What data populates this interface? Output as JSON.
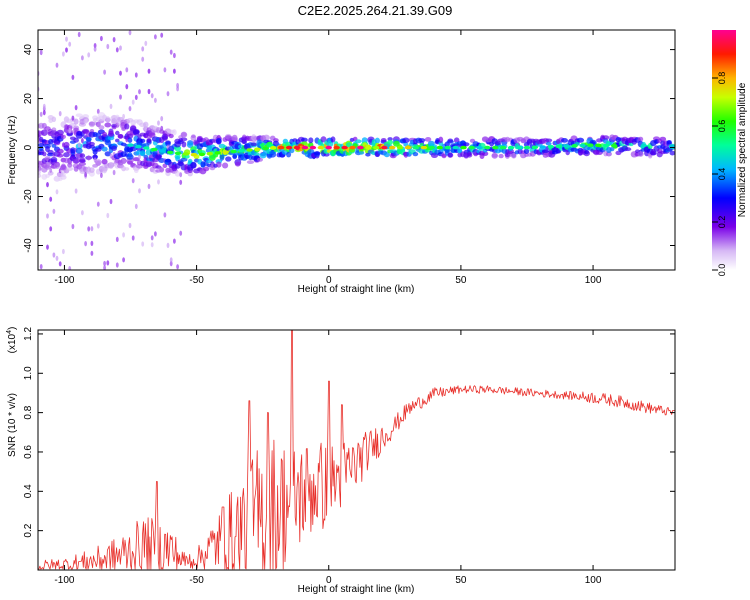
{
  "title": "C2E2.2025.264.21.39.G09",
  "chart_data": [
    {
      "type": "heatmap",
      "name": "spectrogram",
      "xlabel": "Height of straight line (km)",
      "ylabel": "Frequency (Hz)",
      "xlim": [
        -110,
        131
      ],
      "ylim": [
        -50,
        48
      ],
      "xticks": [
        -100,
        -50,
        0,
        50,
        100
      ],
      "yticks": [
        -40,
        -20,
        0,
        20,
        40
      ],
      "colorbar": {
        "label": "Normalized spectral amplitude",
        "range": [
          0,
          1
        ],
        "ticks": [
          0.0,
          0.2,
          0.4,
          0.6,
          0.8
        ],
        "tick_labels": [
          "0.0",
          "0.2",
          "0.4",
          "0.6",
          "0.8"
        ]
      },
      "ridge": {
        "x": [
          -110,
          -100,
          -90,
          -80,
          -70,
          -60,
          -50,
          -40,
          -30,
          -20,
          -10,
          0,
          10,
          20,
          30,
          50,
          75,
          100,
          131
        ],
        "center_hz": [
          0,
          0,
          1,
          2,
          0,
          -2,
          -3,
          -2,
          -1,
          0,
          0,
          0,
          0,
          0,
          0,
          0,
          0,
          1,
          0
        ],
        "amplitude": [
          0.3,
          0.35,
          0.4,
          0.45,
          0.5,
          0.55,
          0.7,
          0.65,
          0.6,
          0.75,
          0.9,
          0.95,
          0.9,
          0.85,
          0.7,
          0.55,
          0.5,
          0.6,
          0.45
        ]
      }
    },
    {
      "type": "line",
      "name": "snr",
      "color": "#e8302b",
      "xlabel": "Height of straight line (km)",
      "ylabel": "SNR (10 * v/v)",
      "yscale_label": "(x10",
      "yscale_exp": "4",
      "yscale_close": ")",
      "xlim": [
        -110,
        131
      ],
      "ylim": [
        0,
        1.22
      ],
      "xticks": [
        -100,
        -50,
        0,
        50,
        100
      ],
      "yticks": [
        0.2,
        0.4,
        0.6,
        0.8,
        1.0,
        1.2
      ],
      "ytick_labels": [
        "0.2",
        "0.4",
        "0.6",
        "0.8",
        "1.0",
        "1.2"
      ],
      "envelope": {
        "x": [
          -110,
          -100,
          -90,
          -80,
          -70,
          -60,
          -55,
          -50,
          -45,
          -40,
          -35,
          -30,
          -25,
          -20,
          -15,
          -10,
          -5,
          0,
          5,
          10,
          15,
          20,
          25,
          30,
          40,
          50,
          60,
          70,
          80,
          90,
          100,
          110,
          120,
          131
        ],
        "baseline": [
          0.02,
          0.03,
          0.05,
          0.08,
          0.14,
          0.12,
          0.05,
          0.06,
          0.12,
          0.18,
          0.2,
          0.28,
          0.3,
          0.35,
          0.38,
          0.42,
          0.45,
          0.45,
          0.5,
          0.55,
          0.62,
          0.68,
          0.74,
          0.82,
          0.9,
          0.92,
          0.92,
          0.91,
          0.9,
          0.89,
          0.88,
          0.86,
          0.83,
          0.8
        ],
        "noise": [
          0.03,
          0.04,
          0.06,
          0.1,
          0.15,
          0.14,
          0.05,
          0.05,
          0.12,
          0.18,
          0.28,
          0.35,
          0.4,
          0.4,
          0.3,
          0.28,
          0.25,
          0.22,
          0.18,
          0.15,
          0.1,
          0.08,
          0.05,
          0.04,
          0.03,
          0.02,
          0.02,
          0.02,
          0.02,
          0.02,
          0.03,
          0.03,
          0.03,
          0.02
        ]
      },
      "peaks": [
        {
          "x": -65,
          "y": 0.45
        },
        {
          "x": -40,
          "y": 0.32
        },
        {
          "x": -30,
          "y": 0.86
        },
        {
          "x": -23,
          "y": 0.8
        },
        {
          "x": -14,
          "y": 1.22
        },
        {
          "x": 0,
          "y": 0.96
        },
        {
          "x": 5,
          "y": 0.84
        }
      ]
    }
  ]
}
